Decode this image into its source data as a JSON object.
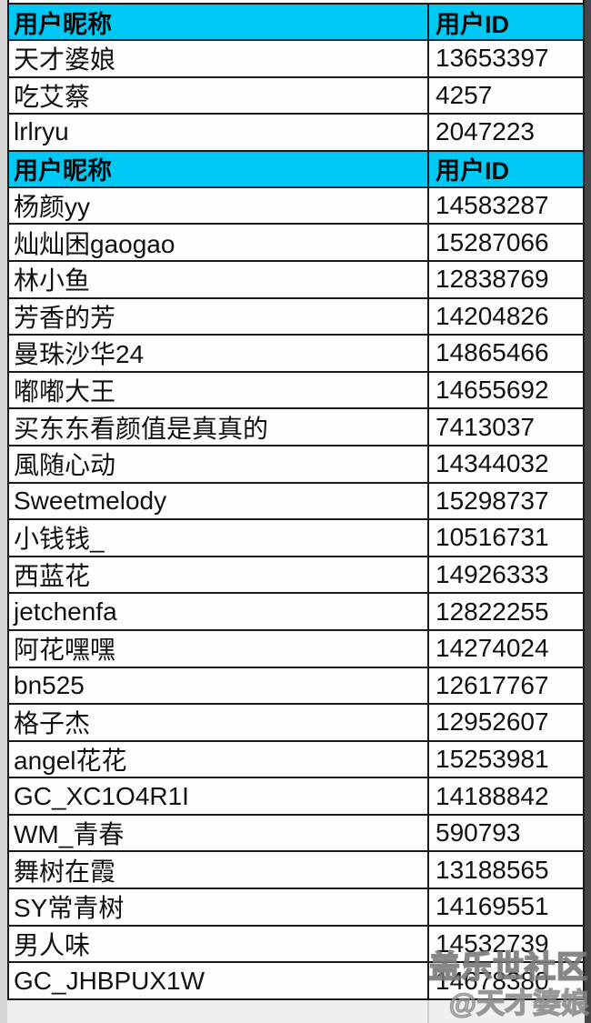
{
  "colors": {
    "header_bg": "#00c8f5",
    "border": "#1a1a1a",
    "row_bg": "#fdfdfd",
    "side_strip": "#454545",
    "watermark_gray": "#8a8a8a"
  },
  "table": {
    "sections": [
      {
        "header": {
          "nickname_label": "用户昵称",
          "id_label": "用户ID"
        },
        "rows": [
          {
            "nickname": "天才婆娘",
            "id": "13653397"
          },
          {
            "nickname": "吃艾蔡",
            "id": "4257"
          },
          {
            "nickname": "lrlryu",
            "id": "2047223"
          }
        ]
      },
      {
        "header": {
          "nickname_label": "用户昵称",
          "id_label": "用户ID"
        },
        "rows": [
          {
            "nickname": "杨颜yy",
            "id": "14583287"
          },
          {
            "nickname": "灿灿困gaogao",
            "id": "15287066"
          },
          {
            "nickname": "林小鱼",
            "id": "12838769"
          },
          {
            "nickname": "芳香的芳",
            "id": "14204826"
          },
          {
            "nickname": "曼珠沙华24",
            "id": "14865466"
          },
          {
            "nickname": "嘟嘟大王",
            "id": "14655692"
          },
          {
            "nickname": "买东东看颜值是真真的",
            "id": "7413037"
          },
          {
            "nickname": "風随心动",
            "id": "14344032"
          },
          {
            "nickname": "Sweetmelody",
            "id": "15298737"
          },
          {
            "nickname": "小钱钱_",
            "id": "10516731"
          },
          {
            "nickname": "西蓝花",
            "id": "14926333"
          },
          {
            "nickname": "jetchenfa",
            "id": "12822255"
          },
          {
            "nickname": "阿花嘿嘿",
            "id": "14274024"
          },
          {
            "nickname": "bn525",
            "id": "12617767"
          },
          {
            "nickname": "格子杰",
            "id": "12952607"
          },
          {
            "nickname": "angel花花",
            "id": "15253981"
          },
          {
            "nickname": "GC_XC1O4R1I",
            "id": "14188842"
          },
          {
            "nickname": "WM_青春",
            "id": "590793"
          },
          {
            "nickname": "舞树在霞",
            "id": "13188565"
          },
          {
            "nickname": "SY常青树",
            "id": "14169551"
          },
          {
            "nickname": "男人味",
            "id": "14532739"
          },
          {
            "nickname": "GC_JHBPUX1W",
            "id": "14678380"
          }
        ]
      }
    ]
  },
  "watermark": {
    "line1": "盖乐世社区",
    "line2": "@天才婆娘"
  }
}
